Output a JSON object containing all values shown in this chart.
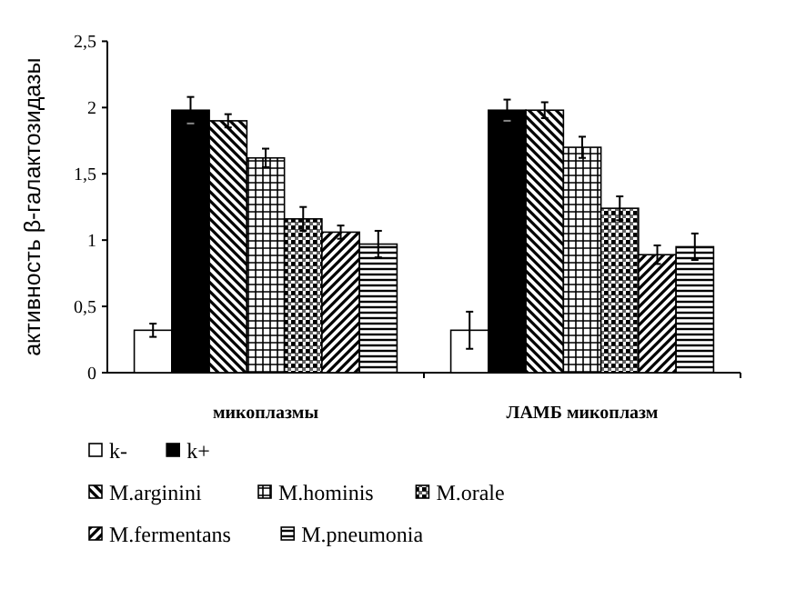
{
  "chart_data": {
    "type": "bar",
    "ylabel": "активность β-галактозидазы",
    "categories": [
      "микоплазмы",
      "ЛАМБ микоплазм"
    ],
    "series": [
      {
        "name": "k-",
        "color": "#ffffff",
        "values": [
          0.32,
          0.32
        ],
        "errors": [
          0.05,
          0.14
        ]
      },
      {
        "name": "k+",
        "color": "#000000",
        "values": [
          1.98,
          1.98
        ],
        "errors": [
          0.1,
          0.08
        ]
      },
      {
        "name": "M.arginini",
        "color": "#000000",
        "values": [
          1.9,
          1.98
        ],
        "errors": [
          0.05,
          0.06
        ]
      },
      {
        "name": "M.hominis",
        "color": "#000000",
        "values": [
          1.62,
          1.7
        ],
        "errors": [
          0.07,
          0.08
        ]
      },
      {
        "name": "M.orale",
        "color": "#000000",
        "values": [
          1.16,
          1.24
        ],
        "errors": [
          0.09,
          0.09
        ]
      },
      {
        "name": "M.fermentans",
        "color": "#000000",
        "values": [
          1.06,
          0.89
        ],
        "errors": [
          0.05,
          0.07
        ]
      },
      {
        "name": "M.pneumonia",
        "color": "#000000",
        "values": [
          0.97,
          0.95
        ],
        "errors": [
          0.1,
          0.1
        ]
      }
    ],
    "ylim": [
      0,
      2.5
    ],
    "yticks": [
      0,
      {
        "value": 0.5,
        "label": "0,5"
      },
      1,
      {
        "value": 1.5,
        "label": "1,5"
      },
      2,
      {
        "value": 2.5,
        "label": "2,5"
      }
    ],
    "grid": false,
    "legend": "bottom"
  }
}
